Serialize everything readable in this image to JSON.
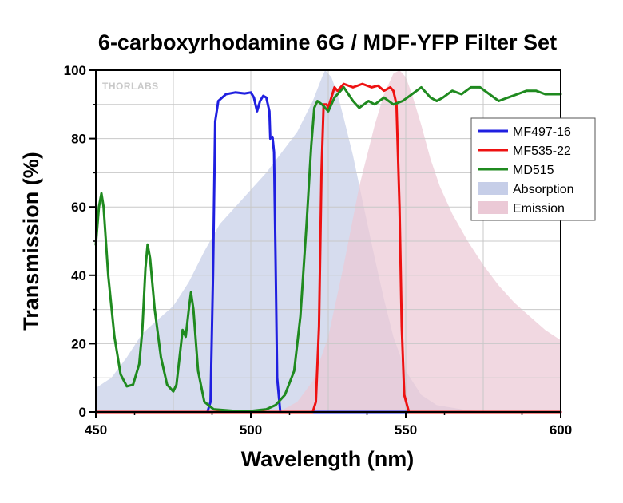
{
  "chart_data": {
    "type": "line",
    "title": "6-carboxyrhodamine 6G / MDF-YFP Filter Set",
    "xlabel": "Wavelength (nm)",
    "ylabel": "Transmission (%)",
    "xlim": [
      450,
      600
    ],
    "ylim": [
      0,
      100
    ],
    "xticks": [
      450,
      500,
      550,
      600
    ],
    "yticks": [
      0,
      20,
      40,
      60,
      80,
      100
    ],
    "grid": true,
    "legend_position": "right",
    "watermark": "THORLABS",
    "series": [
      {
        "name": "MF497-16",
        "kind": "line",
        "color": "#1f1fe0",
        "points": [
          [
            450,
            0
          ],
          [
            486,
            0
          ],
          [
            487,
            3
          ],
          [
            487.8,
            40
          ],
          [
            488.5,
            85
          ],
          [
            489.5,
            91
          ],
          [
            492,
            93
          ],
          [
            495,
            93.5
          ],
          [
            498,
            93.2
          ],
          [
            500,
            93.5
          ],
          [
            501,
            92
          ],
          [
            502,
            88
          ],
          [
            503,
            91
          ],
          [
            504,
            92.5
          ],
          [
            505,
            92
          ],
          [
            506,
            88
          ],
          [
            506.3,
            80
          ],
          [
            507,
            80.5
          ],
          [
            507.5,
            76
          ],
          [
            508,
            45
          ],
          [
            508.5,
            10
          ],
          [
            509.5,
            0
          ],
          [
            600,
            0
          ]
        ]
      },
      {
        "name": "MF535-22",
        "kind": "line",
        "color": "#ee1111",
        "points": [
          [
            450,
            0
          ],
          [
            520,
            0
          ],
          [
            521,
            3
          ],
          [
            522,
            25
          ],
          [
            522.8,
            70
          ],
          [
            523.5,
            90
          ],
          [
            524.5,
            90
          ],
          [
            525,
            89
          ],
          [
            526,
            92
          ],
          [
            527,
            95
          ],
          [
            528,
            94
          ],
          [
            530,
            96
          ],
          [
            533,
            95
          ],
          [
            536,
            96
          ],
          [
            539,
            95
          ],
          [
            541,
            95.5
          ],
          [
            543,
            94
          ],
          [
            545,
            95
          ],
          [
            546,
            94
          ],
          [
            547,
            90
          ],
          [
            548,
            60
          ],
          [
            548.7,
            25
          ],
          [
            549.5,
            5
          ],
          [
            551,
            0
          ],
          [
            600,
            0
          ]
        ]
      },
      {
        "name": "MD515",
        "kind": "line",
        "color": "#1f8a1f",
        "points": [
          [
            450,
            49
          ],
          [
            451,
            60
          ],
          [
            451.8,
            64
          ],
          [
            452.5,
            60
          ],
          [
            454,
            40
          ],
          [
            456,
            22
          ],
          [
            458,
            11
          ],
          [
            460,
            7.5
          ],
          [
            462,
            8
          ],
          [
            464,
            14
          ],
          [
            465,
            24
          ],
          [
            466,
            42
          ],
          [
            466.7,
            49
          ],
          [
            467.5,
            45
          ],
          [
            469,
            30
          ],
          [
            471,
            16
          ],
          [
            473,
            8
          ],
          [
            475,
            6
          ],
          [
            476,
            8
          ],
          [
            477,
            16
          ],
          [
            478,
            24
          ],
          [
            479,
            22
          ],
          [
            480,
            30
          ],
          [
            480.7,
            35
          ],
          [
            481.5,
            30
          ],
          [
            483,
            12
          ],
          [
            485,
            3
          ],
          [
            488,
            0.8
          ],
          [
            495,
            0.3
          ],
          [
            500,
            0.3
          ],
          [
            505,
            0.8
          ],
          [
            508,
            2
          ],
          [
            511,
            5
          ],
          [
            514,
            12
          ],
          [
            516,
            28
          ],
          [
            518,
            55
          ],
          [
            519.5,
            78
          ],
          [
            520.5,
            89
          ],
          [
            521.5,
            91
          ],
          [
            523,
            90
          ],
          [
            525,
            88
          ],
          [
            527,
            92
          ],
          [
            530,
            95
          ],
          [
            533,
            91
          ],
          [
            535,
            89
          ],
          [
            538,
            91
          ],
          [
            540,
            90
          ],
          [
            543,
            92
          ],
          [
            546,
            90
          ],
          [
            549,
            91
          ],
          [
            552,
            93
          ],
          [
            555,
            95
          ],
          [
            558,
            92
          ],
          [
            560,
            91
          ],
          [
            562,
            92
          ],
          [
            565,
            94
          ],
          [
            568,
            93
          ],
          [
            571,
            95
          ],
          [
            574,
            95
          ],
          [
            577,
            93
          ],
          [
            580,
            91
          ],
          [
            583,
            92
          ],
          [
            586,
            93
          ],
          [
            589,
            94
          ],
          [
            592,
            94
          ],
          [
            595,
            93
          ],
          [
            600,
            93
          ]
        ]
      },
      {
        "name": "Absorption",
        "kind": "area",
        "color": "#c6cee8",
        "points": [
          [
            450,
            7
          ],
          [
            455,
            10
          ],
          [
            460,
            16
          ],
          [
            465,
            23
          ],
          [
            470,
            27
          ],
          [
            475,
            31
          ],
          [
            480,
            38
          ],
          [
            485,
            47
          ],
          [
            490,
            55
          ],
          [
            495,
            60
          ],
          [
            500,
            65
          ],
          [
            505,
            70
          ],
          [
            510,
            76
          ],
          [
            515,
            82
          ],
          [
            520,
            91
          ],
          [
            523,
            98
          ],
          [
            524,
            100
          ],
          [
            526,
            98
          ],
          [
            528,
            93
          ],
          [
            530,
            86
          ],
          [
            533,
            75
          ],
          [
            536,
            62
          ],
          [
            540,
            45
          ],
          [
            543,
            33
          ],
          [
            546,
            22
          ],
          [
            550,
            12
          ],
          [
            555,
            5
          ],
          [
            560,
            2
          ],
          [
            570,
            0.5
          ],
          [
            580,
            0
          ],
          [
            600,
            0
          ]
        ]
      },
      {
        "name": "Emission",
        "kind": "area",
        "color": "#ebc9d6",
        "points": [
          [
            450,
            0
          ],
          [
            505,
            0
          ],
          [
            510,
            0.5
          ],
          [
            515,
            3
          ],
          [
            520,
            9
          ],
          [
            525,
            22
          ],
          [
            530,
            43
          ],
          [
            535,
            66
          ],
          [
            540,
            84
          ],
          [
            543,
            93
          ],
          [
            546,
            99
          ],
          [
            548,
            100
          ],
          [
            550,
            98
          ],
          [
            552,
            93
          ],
          [
            555,
            84
          ],
          [
            558,
            74
          ],
          [
            561,
            66
          ],
          [
            565,
            58
          ],
          [
            570,
            50
          ],
          [
            575,
            43
          ],
          [
            580,
            37
          ],
          [
            585,
            32
          ],
          [
            590,
            28
          ],
          [
            595,
            24
          ],
          [
            600,
            21
          ]
        ]
      }
    ]
  }
}
